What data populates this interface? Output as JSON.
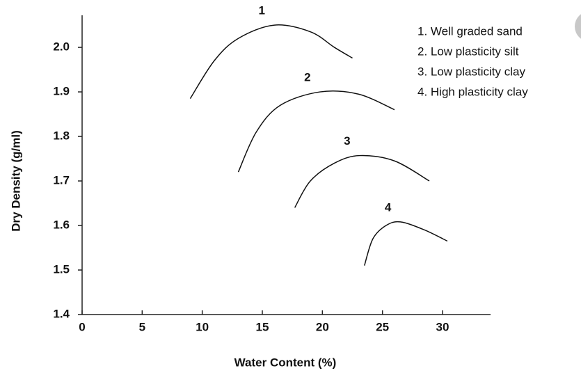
{
  "chart_data": {
    "type": "line",
    "x_label": "Water Content (%)",
    "y_label": "Dry Density (g/ml)",
    "xlim": [
      0,
      34
    ],
    "ylim": [
      1.4,
      2.072
    ],
    "xticks": [
      0,
      5,
      10,
      15,
      20,
      25,
      30
    ],
    "yticks": [
      1.4,
      1.5,
      1.6,
      1.7,
      1.8,
      1.9,
      {
        "value": 2,
        "label": "2.0"
      }
    ],
    "series": [
      {
        "name": "1. Well graded sand",
        "label": "1",
        "color": "#111111",
        "x": [
          9,
          11,
          13,
          16,
          19,
          21,
          22.5
        ],
        "values": [
          1.885,
          1.97,
          2.02,
          2.05,
          2.035,
          2.0,
          1.976
        ]
      },
      {
        "name": "2. Low plasticity silt",
        "label": "2",
        "color": "#111111",
        "x": [
          13,
          14.5,
          16.5,
          19.8,
          23,
          26
        ],
        "values": [
          1.72,
          1.81,
          1.87,
          1.9,
          1.895,
          1.86
        ]
      },
      {
        "name": "3. Low plasticity clay",
        "label": "3",
        "color": "#111111",
        "x": [
          17.7,
          19,
          21,
          23.1,
          26,
          28.9
        ],
        "values": [
          1.64,
          1.7,
          1.74,
          1.757,
          1.745,
          1.7
        ]
      },
      {
        "name": "4. High plasticity clay",
        "label": "4",
        "color": "#111111",
        "x": [
          23.5,
          24.2,
          25.3,
          26.5,
          28.5,
          30.4
        ],
        "values": [
          1.51,
          1.57,
          1.6,
          1.608,
          1.59,
          1.565
        ]
      }
    ]
  }
}
